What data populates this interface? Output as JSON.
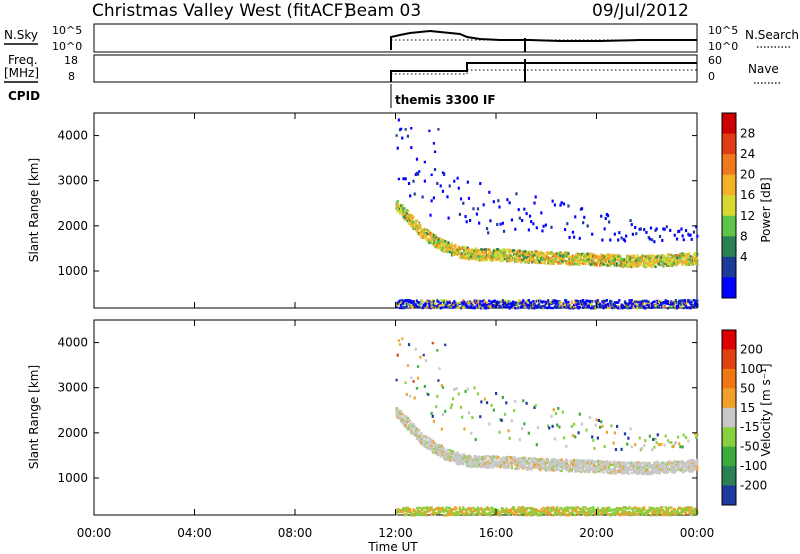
{
  "header": {
    "station": "Christmas Valley West (fitACF)",
    "beam": "Beam 03",
    "date": "09/Jul/2012"
  },
  "top_panels": {
    "nsky_label": "N.Sky",
    "nsearch_label": "N.Search",
    "nsky_ticks": [
      "10^5",
      "10^0"
    ],
    "freq_label": "Freq.",
    "freq_unit": "[MHz]",
    "freq_ticks": [
      "18",
      "8"
    ],
    "nave_label": "Nave",
    "nave_ticks": [
      "60",
      "0"
    ],
    "cpid_label": "CPID",
    "cpid_value": "themis 3300 IF"
  },
  "chart_data": [
    {
      "type": "scatter",
      "panel": "power",
      "xlabel": "Time UT",
      "ylabel": "Slant Range [km]",
      "xticks": [
        "00:00",
        "04:00",
        "08:00",
        "12:00",
        "16:00",
        "20:00",
        "00:00"
      ],
      "yticks": [
        "1000",
        "2000",
        "3000",
        "4000"
      ],
      "xlim": [
        0,
        24
      ],
      "ylim": [
        180,
        4500
      ],
      "colorbar": {
        "label": "Power [dB]",
        "ticks": [
          "4",
          "8",
          "12",
          "16",
          "20",
          "24",
          "28"
        ],
        "colors": [
          "#0000ff",
          "#1e3a99",
          "#2a7f55",
          "#5fc44a",
          "#d8d832",
          "#f4b22a",
          "#f0781e",
          "#e03c14",
          "#cc0000"
        ]
      },
      "data_start_hour": 12.0,
      "series": [
        {
          "x": [
            12.0,
            12.5,
            13.0,
            13.5,
            14.0,
            14.5,
            15.0,
            16.0,
            17.0,
            18.0,
            19.0,
            20.0,
            21.0,
            22.0,
            23.0,
            24.0
          ],
          "y": [
            2500,
            2200,
            1900,
            1700,
            1550,
            1450,
            1400,
            1380,
            1350,
            1320,
            1300,
            1280,
            1250,
            1240,
            1270,
            1300
          ]
        }
      ]
    },
    {
      "type": "scatter",
      "panel": "velocity",
      "xlabel": "Time UT",
      "ylabel": "Slant Range [km]",
      "xticks": [
        "00:00",
        "04:00",
        "08:00",
        "12:00",
        "16:00",
        "20:00",
        "00:00"
      ],
      "yticks": [
        "1000",
        "2000",
        "3000",
        "4000"
      ],
      "xlim": [
        0,
        24
      ],
      "ylim": [
        180,
        4500
      ],
      "colorbar": {
        "label": "Velocity [m s⁻¹]",
        "ticks": [
          "200",
          "100",
          "50",
          "15",
          "-15",
          "-50",
          "-100",
          "-200"
        ],
        "colors": [
          "#1e3aa0",
          "#2a7f55",
          "#3caa3c",
          "#88d040",
          "#c8c8c8",
          "#f0a028",
          "#f07814",
          "#e04010",
          "#dd0000"
        ]
      },
      "data_start_hour": 12.0,
      "series": [
        {
          "x": [
            12.0,
            12.5,
            13.0,
            13.5,
            14.0,
            14.5,
            15.0,
            16.0,
            17.0,
            18.0,
            19.0,
            20.0,
            21.0,
            22.0,
            23.0,
            24.0
          ],
          "y": [
            2500,
            2200,
            1900,
            1700,
            1550,
            1450,
            1400,
            1380,
            1350,
            1320,
            1300,
            1280,
            1250,
            1240,
            1270,
            1300
          ]
        }
      ]
    }
  ]
}
